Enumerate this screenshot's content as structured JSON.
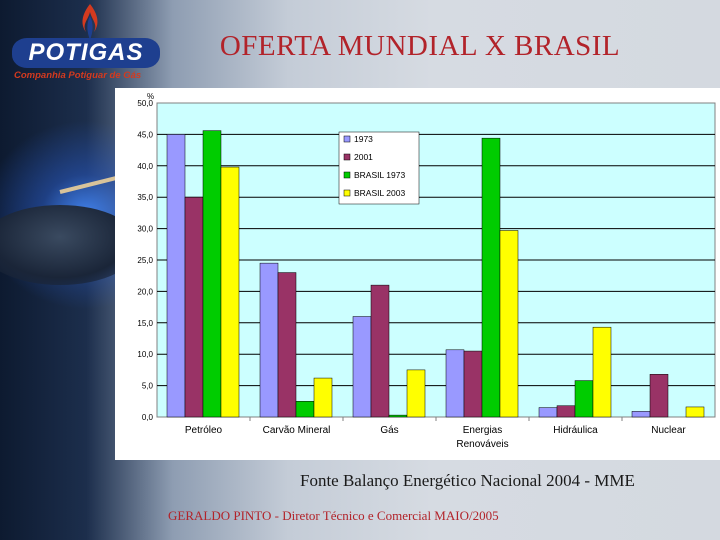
{
  "logo": {
    "name": "POTIGAS",
    "subtitle": "Companhia Potiguar de Gás"
  },
  "slide": {
    "title": "OFERTA MUNDIAL X BRASIL",
    "source": "Fonte Balanço Energético Nacional 2004 - MME",
    "footer": "GERALDO PINTO - Diretor Técnico e Comercial MAIO/2005"
  },
  "colors": {
    "title": "#b2232a",
    "plot_bg": "#ccffff",
    "s1973": "#9999ff",
    "s2001": "#993366",
    "sbr1973": "#00cc00",
    "sbr2003": "#ffff00"
  },
  "chart_data": {
    "type": "bar",
    "title": "",
    "ylabel": "%",
    "xlabel": "",
    "ylim": [
      0,
      50
    ],
    "yticks": [
      "0,0",
      "5,0",
      "10,0",
      "15,0",
      "20,0",
      "25,0",
      "30,0",
      "35,0",
      "40,0",
      "45,0",
      "50,0"
    ],
    "ytick_values": [
      0,
      5,
      10,
      15,
      20,
      25,
      30,
      35,
      40,
      45,
      50
    ],
    "grid": true,
    "legend_position": "top-center",
    "categories": [
      [
        "Petróleo"
      ],
      [
        "Carvão Mineral"
      ],
      [
        "Gás"
      ],
      [
        "Energias",
        "Renováveis"
      ],
      [
        "Hidráulica"
      ],
      [
        "Nuclear"
      ]
    ],
    "series": [
      {
        "name": "1973",
        "values": [
          45.0,
          24.5,
          16.0,
          10.7,
          1.5,
          0.9
        ]
      },
      {
        "name": "2001",
        "values": [
          35.0,
          23.0,
          21.0,
          10.5,
          1.8,
          6.8
        ]
      },
      {
        "name": "BRASIL 1973",
        "values": [
          45.6,
          2.5,
          0.3,
          44.4,
          5.8,
          0.0
        ]
      },
      {
        "name": "BRASIL 2003",
        "values": [
          39.8,
          6.2,
          7.5,
          29.7,
          14.3,
          1.6
        ]
      }
    ]
  }
}
